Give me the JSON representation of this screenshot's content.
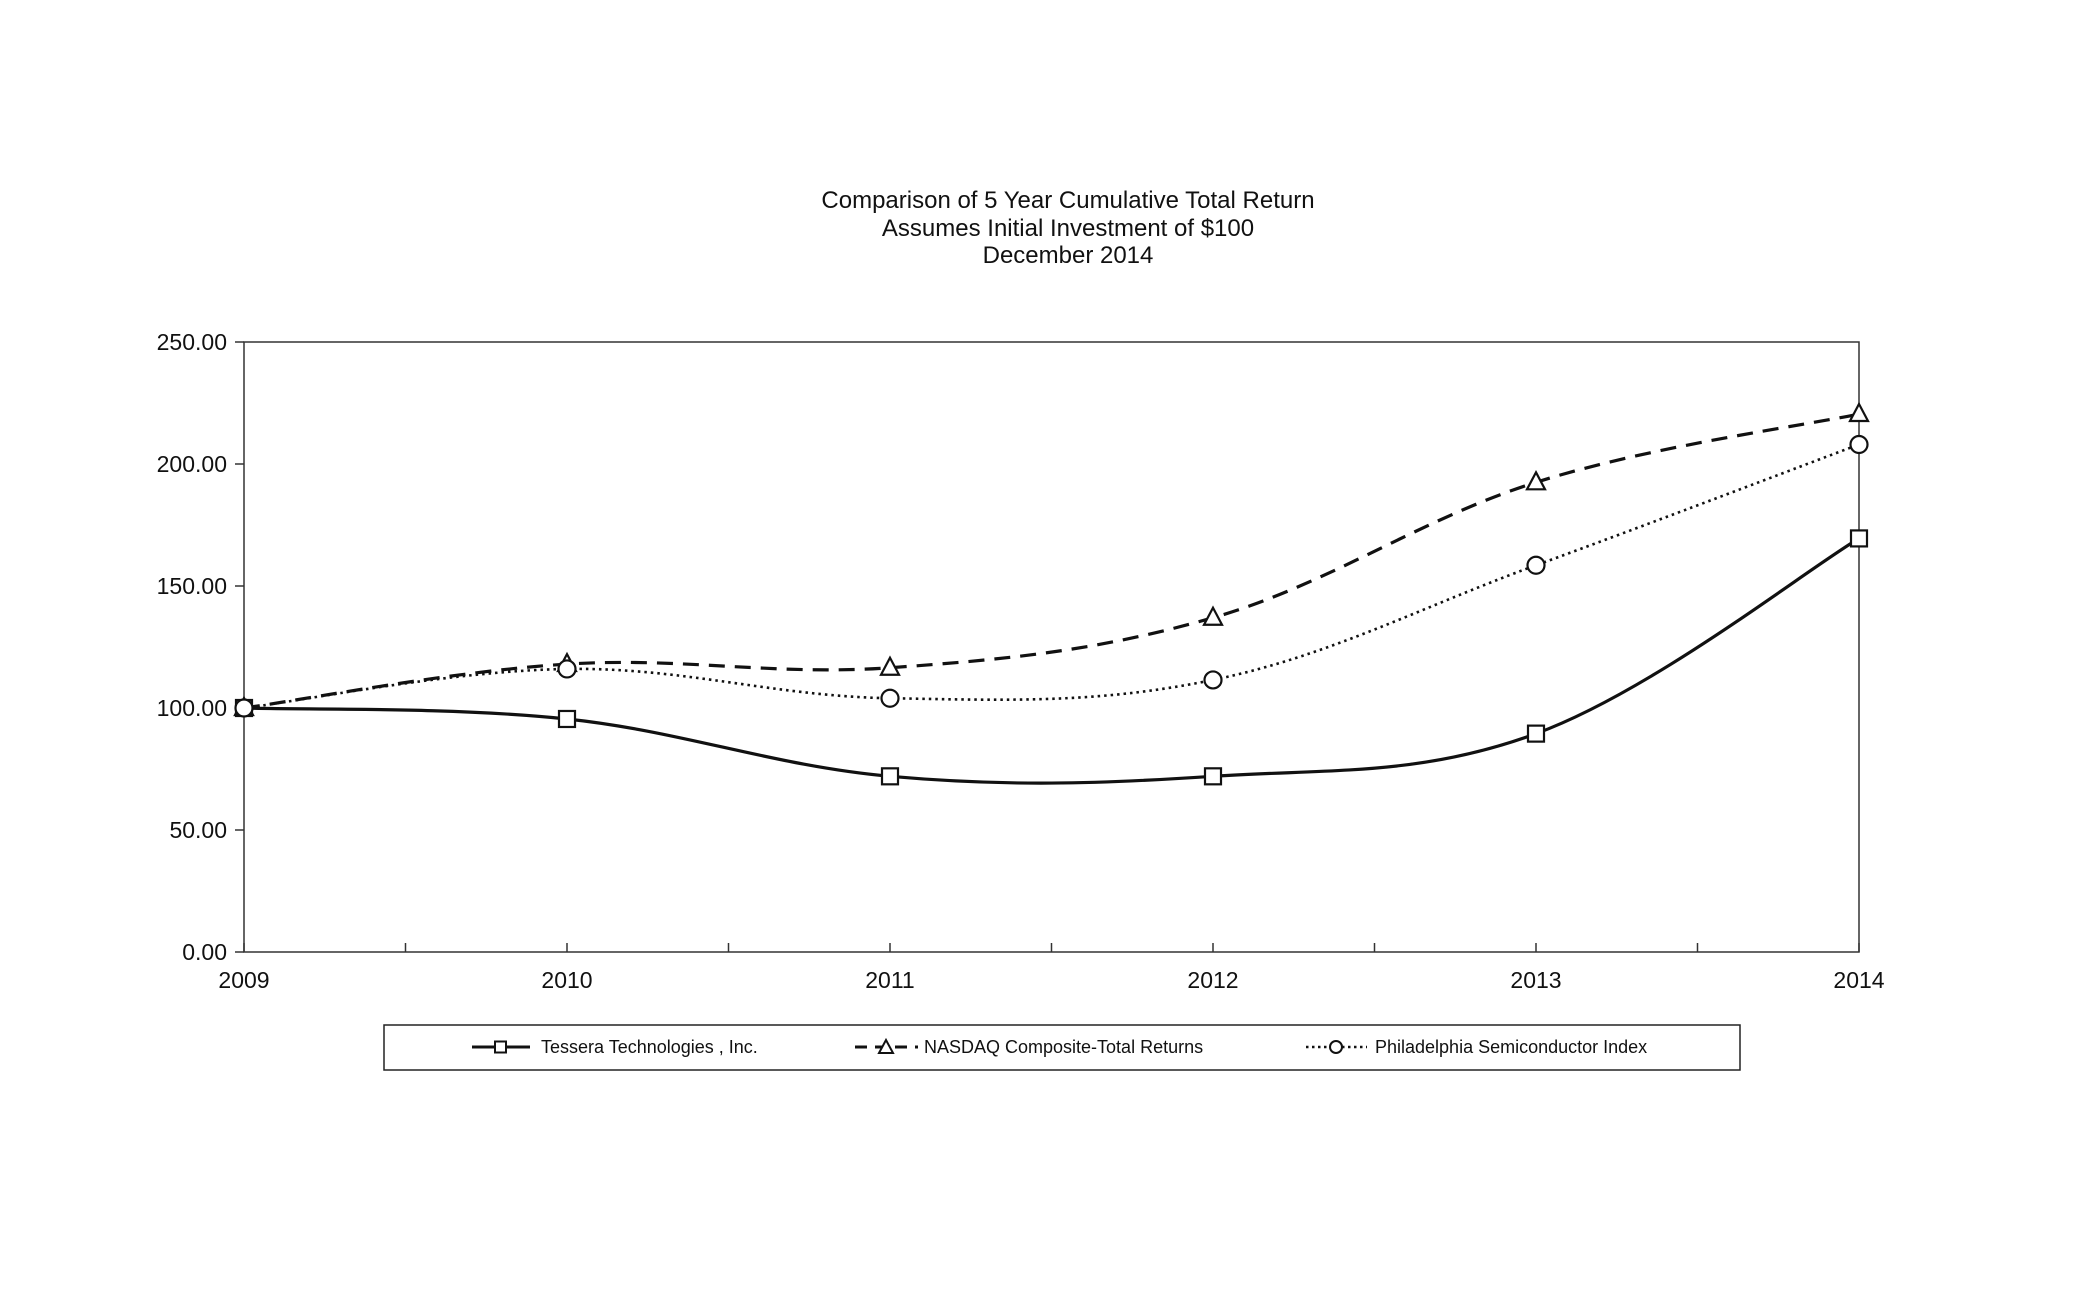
{
  "chart_data": {
    "type": "line",
    "title": "Comparison  of 5  Year Cumulative  Total Return",
    "subtitle_lines": [
      "Assumes Initial Investment  of $100",
      "December 2014"
    ],
    "categories": [
      "2009",
      "2010",
      "2011",
      "2012",
      "2013",
      "2014"
    ],
    "ylim": [
      0,
      250
    ],
    "y_ticks": [
      0,
      50,
      100,
      150,
      200,
      250
    ],
    "y_tick_labels": [
      "0.00",
      "50.00",
      "100.00",
      "150.00",
      "200.00",
      "250.00"
    ],
    "xlabel": "",
    "ylabel": "",
    "grid": false,
    "legend_position": "bottom",
    "series": [
      {
        "name": "Tessera Technologies , Inc.",
        "style": "solid",
        "marker": "square",
        "values": [
          100.0,
          95.5,
          72.0,
          72.0,
          89.5,
          169.5
        ]
      },
      {
        "name": "NASDAQ Composite-Total Returns",
        "style": "dashed",
        "marker": "triangle",
        "values": [
          100.0,
          118.0,
          116.5,
          137.0,
          192.5,
          220.5
        ]
      },
      {
        "name": "Philadelphia Semiconductor Index",
        "style": "dotted",
        "marker": "circle",
        "values": [
          100.0,
          116.0,
          104.0,
          111.5,
          158.5,
          208.0
        ]
      }
    ],
    "colors": {
      "line": "#111111",
      "axis": "#333333",
      "background": "#ffffff"
    }
  }
}
